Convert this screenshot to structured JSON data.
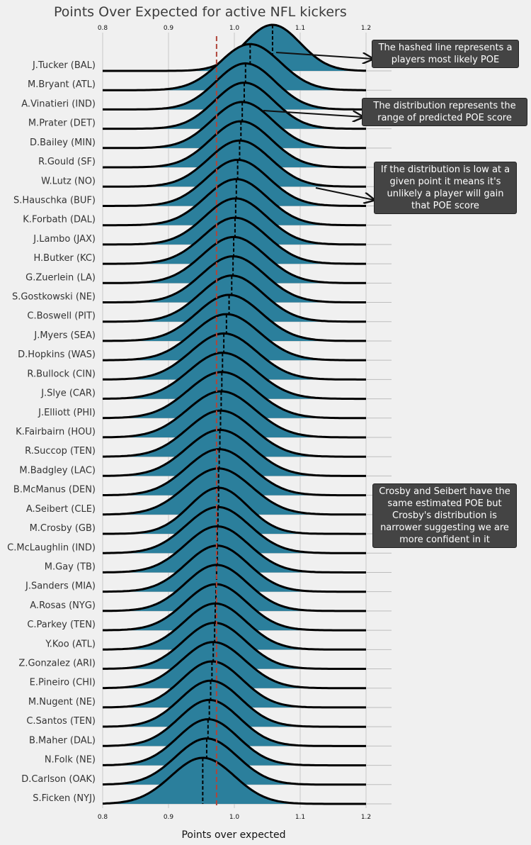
{
  "chart_data": {
    "type": "ridgeline",
    "title": "Points Over Expected for active NFL kickers",
    "xlabel": "Points over expected",
    "xlim": [
      0.8,
      1.2
    ],
    "xticks": [
      "0.8",
      "0.9",
      "1.0",
      "1.1",
      "1.2"
    ],
    "reference_line": 0.973,
    "colors": {
      "fill": "#2b7f9c",
      "curve": "#000000",
      "reference_line": "#b0453a",
      "annotation_bg": "#444444"
    },
    "series": [
      {
        "name": "J.Tucker (BAL)",
        "mean": 1.058,
        "sd": 0.042
      },
      {
        "name": "M.Bryant (ATL)",
        "mean": 1.024,
        "sd": 0.046
      },
      {
        "name": "A.Vinatieri (IND)",
        "mean": 1.017,
        "sd": 0.045
      },
      {
        "name": "M.Prater (DET)",
        "mean": 1.015,
        "sd": 0.045
      },
      {
        "name": "D.Bailey (MIN)",
        "mean": 1.012,
        "sd": 0.046
      },
      {
        "name": "R.Gould (SF)",
        "mean": 1.01,
        "sd": 0.046
      },
      {
        "name": "W.Lutz (NO)",
        "mean": 1.008,
        "sd": 0.047
      },
      {
        "name": "S.Hauschka (BUF)",
        "mean": 1.005,
        "sd": 0.047
      },
      {
        "name": "K.Forbath (DAL)",
        "mean": 1.003,
        "sd": 0.047
      },
      {
        "name": "J.Lambo (JAX)",
        "mean": 1.002,
        "sd": 0.047
      },
      {
        "name": "H.Butker (KC)",
        "mean": 1.001,
        "sd": 0.048
      },
      {
        "name": "G.Zuerlein (LA)",
        "mean": 0.999,
        "sd": 0.048
      },
      {
        "name": "S.Gostkowski (NE)",
        "mean": 0.998,
        "sd": 0.048
      },
      {
        "name": "C.Boswell (PIT)",
        "mean": 0.996,
        "sd": 0.048
      },
      {
        "name": "J.Myers (SEA)",
        "mean": 0.992,
        "sd": 0.049
      },
      {
        "name": "D.Hopkins (WAS)",
        "mean": 0.988,
        "sd": 0.05
      },
      {
        "name": "R.Bullock (CIN)",
        "mean": 0.984,
        "sd": 0.05
      },
      {
        "name": "J.Slye (CAR)",
        "mean": 0.982,
        "sd": 0.051
      },
      {
        "name": "J.Elliott (PHI)",
        "mean": 0.981,
        "sd": 0.051
      },
      {
        "name": "K.Fairbairn (HOU)",
        "mean": 0.98,
        "sd": 0.051
      },
      {
        "name": "R.Succop (TEN)",
        "mean": 0.979,
        "sd": 0.05
      },
      {
        "name": "M.Badgley (LAC)",
        "mean": 0.978,
        "sd": 0.05
      },
      {
        "name": "B.McManus (DEN)",
        "mean": 0.977,
        "sd": 0.049
      },
      {
        "name": "A.Seibert (CLE)",
        "mean": 0.976,
        "sd": 0.05
      },
      {
        "name": "M.Crosby (GB)",
        "mean": 0.976,
        "sd": 0.044
      },
      {
        "name": "C.McLaughlin (IND)",
        "mean": 0.975,
        "sd": 0.048
      },
      {
        "name": "M.Gay (TB)",
        "mean": 0.974,
        "sd": 0.048
      },
      {
        "name": "J.Sanders (MIA)",
        "mean": 0.974,
        "sd": 0.047
      },
      {
        "name": "A.Rosas (NYG)",
        "mean": 0.973,
        "sd": 0.047
      },
      {
        "name": "C.Parkey (TEN)",
        "mean": 0.972,
        "sd": 0.047
      },
      {
        "name": "Y.Koo (ATL)",
        "mean": 0.971,
        "sd": 0.047
      },
      {
        "name": "Z.Gonzalez (ARI)",
        "mean": 0.97,
        "sd": 0.047
      },
      {
        "name": "E.Pineiro (CHI)",
        "mean": 0.968,
        "sd": 0.048
      },
      {
        "name": "M.Nugent (NE)",
        "mean": 0.966,
        "sd": 0.046
      },
      {
        "name": "C.Santos (TEN)",
        "mean": 0.964,
        "sd": 0.046
      },
      {
        "name": "B.Maher (DAL)",
        "mean": 0.962,
        "sd": 0.046
      },
      {
        "name": "N.Folk (NE)",
        "mean": 0.96,
        "sd": 0.046
      },
      {
        "name": "D.Carlson (OAK)",
        "mean": 0.958,
        "sd": 0.047
      },
      {
        "name": "S.Ficken (NYJ)",
        "mean": 0.952,
        "sd": 0.048
      }
    ]
  },
  "annotations": {
    "hashed_line": "The hashed line represents a players most likely POE",
    "distribution": "The distribution represents the range of predicted POE score",
    "low_point": "If the distribution is low at a given point it means it's unlikely a player will gain that POE score",
    "crosby_seibert": "Crosby and Seibert have the same estimated POE but Crosby's distribution is narrower suggesting we are more confident in it"
  }
}
